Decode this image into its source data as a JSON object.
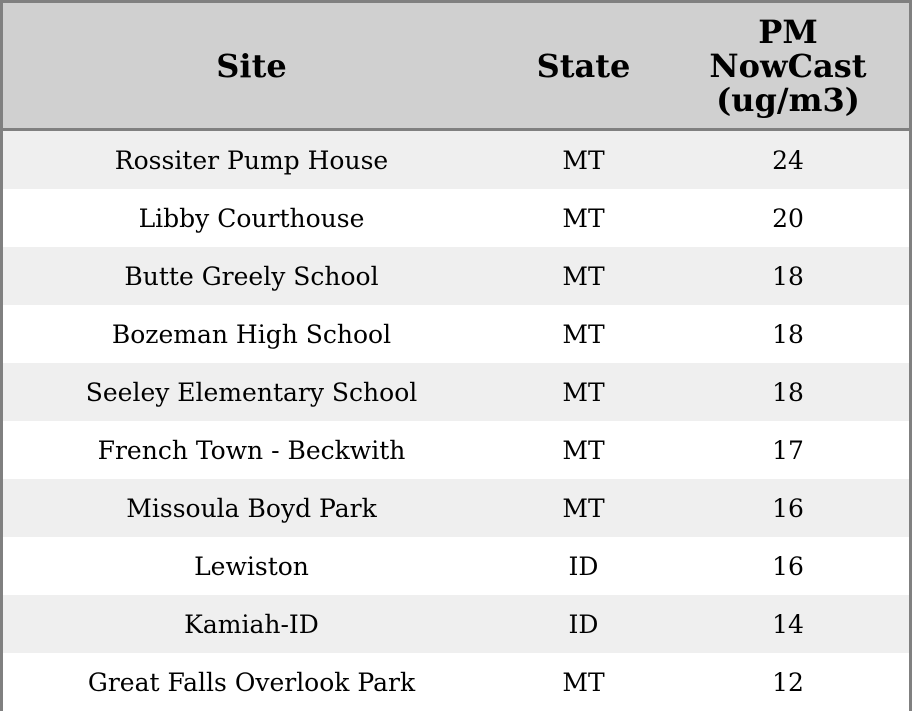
{
  "chart_data": {
    "type": "table",
    "columns": [
      "Site",
      "State",
      "PM NowCast (ug/m3)"
    ],
    "rows": [
      [
        "Rossiter Pump House",
        "MT",
        "24"
      ],
      [
        "Libby Courthouse",
        "MT",
        "20"
      ],
      [
        "Butte Greely School",
        "MT",
        "18"
      ],
      [
        "Bozeman High School",
        "MT",
        "18"
      ],
      [
        "Seeley Elementary School",
        "MT",
        "18"
      ],
      [
        "French Town - Beckwith",
        "MT",
        "17"
      ],
      [
        "Missoula Boyd Park",
        "MT",
        "16"
      ],
      [
        "Lewiston",
        "ID",
        "16"
      ],
      [
        "Kamiah-ID",
        "ID",
        "14"
      ],
      [
        "Great Falls Overlook Park",
        "MT",
        "12"
      ]
    ]
  },
  "colors": {
    "header_bg": "#d0d0d0",
    "stripe_bg": "#efefef",
    "border": "#808080"
  }
}
